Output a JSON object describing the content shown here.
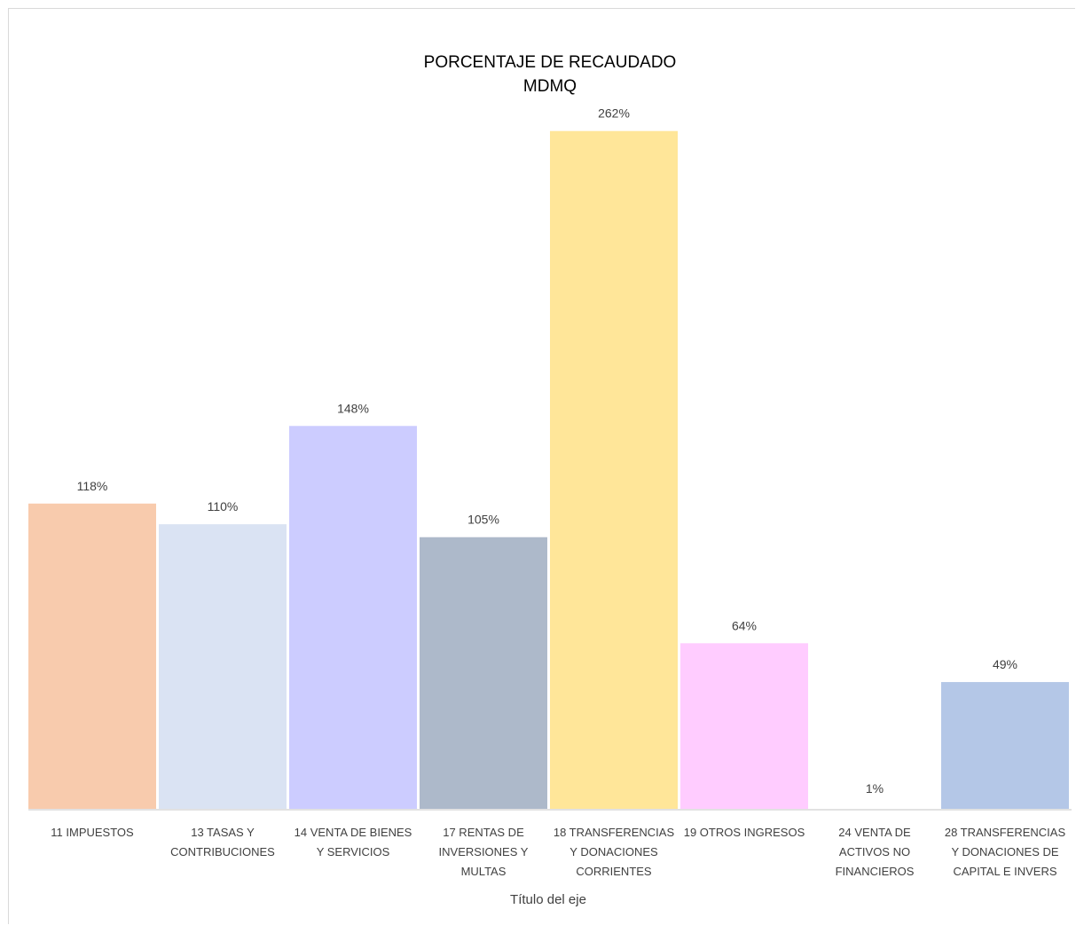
{
  "chart_data": {
    "type": "bar",
    "title_lines": [
      "PORCENTAJE DE RECAUDADO",
      "MDMQ"
    ],
    "xlabel": "Título del eje",
    "ylabel": "",
    "categories": [
      [
        "11 IMPUESTOS"
      ],
      [
        "13 TASAS Y",
        "CONTRIBUCIONES"
      ],
      [
        "14 VENTA DE BIENES",
        "Y SERVICIOS"
      ],
      [
        "17 RENTAS DE",
        "INVERSIONES Y",
        "MULTAS"
      ],
      [
        "18 TRANSFERENCIAS",
        "Y DONACIONES",
        "CORRIENTES"
      ],
      [
        "19 OTROS INGRESOS"
      ],
      [
        "24 VENTA DE",
        "ACTIVOS NO",
        "FINANCIEROS"
      ],
      [
        "28 TRANSFERENCIAS",
        "Y DONACIONES DE",
        "CAPITAL E INVERS"
      ]
    ],
    "values": [
      118,
      110,
      148,
      105,
      262,
      64,
      1,
      49
    ],
    "value_labels": [
      "118%",
      "110%",
      "148%",
      "105%",
      "262%",
      "64%",
      "1%",
      "49%"
    ],
    "colors": [
      "#f8cbad",
      "#dae3f3",
      "#ccccff",
      "#adb9ca",
      "#ffe699",
      "#ffccff",
      "#ffffff",
      "#b4c7e7"
    ],
    "value_unit": "%",
    "grid": false,
    "legend": "none",
    "axis_line_color": "#d9d9d9"
  }
}
